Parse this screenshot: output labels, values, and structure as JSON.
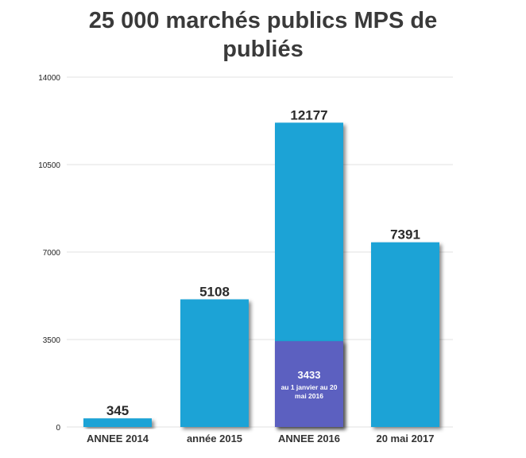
{
  "chart_data": {
    "type": "bar",
    "title_lines": [
      "25 000 marchés publics MPS de",
      "publiés"
    ],
    "categories": [
      "ANNEE 2014",
      "année 2015",
      "ANNEE 2016",
      "20 mai 2017"
    ],
    "values": [
      345,
      5108,
      12177,
      7391
    ],
    "value_labels": [
      "345",
      "5108",
      "12177",
      "7391"
    ],
    "inner_segment": {
      "category": "ANNEE 2016",
      "value": 3433,
      "label": "3433",
      "note_lines": [
        "au 1 janvier au 20",
        "mai 2016"
      ],
      "color": "#5b60c0"
    },
    "yticks": [
      0,
      3500,
      7000,
      10500,
      14000
    ],
    "ylim": [
      0,
      14000
    ],
    "grid": true,
    "colors": {
      "bar": "#1aa3d6",
      "grid": "#e2e2e2",
      "title": "#3a3a3a"
    }
  }
}
